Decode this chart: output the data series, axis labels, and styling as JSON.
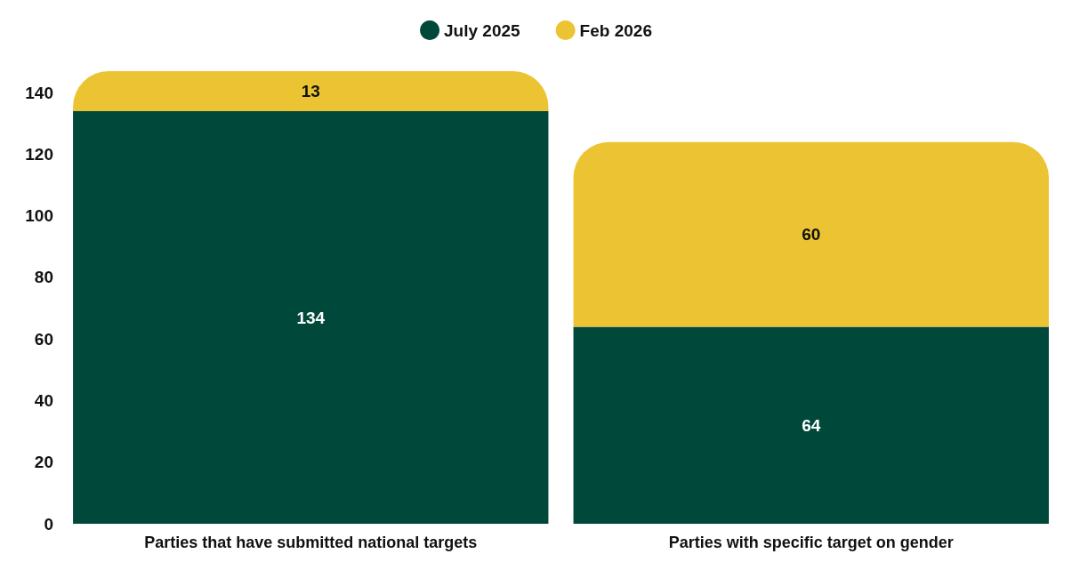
{
  "chart_data": {
    "type": "bar",
    "stacked": true,
    "categories": [
      "Parties that have submitted national targets",
      "Parties with specific target on gender"
    ],
    "series": [
      {
        "name": "July 2025",
        "color": "#00483a",
        "values": [
          134,
          64
        ]
      },
      {
        "name": "Feb 2026",
        "color": "#ecc433",
        "values": [
          13,
          60
        ]
      }
    ],
    "ylim": [
      0,
      147
    ],
    "yticks": [
      0,
      20,
      40,
      60,
      80,
      100,
      120,
      140
    ],
    "grid": false,
    "legend": "top",
    "data_labels": true
  }
}
